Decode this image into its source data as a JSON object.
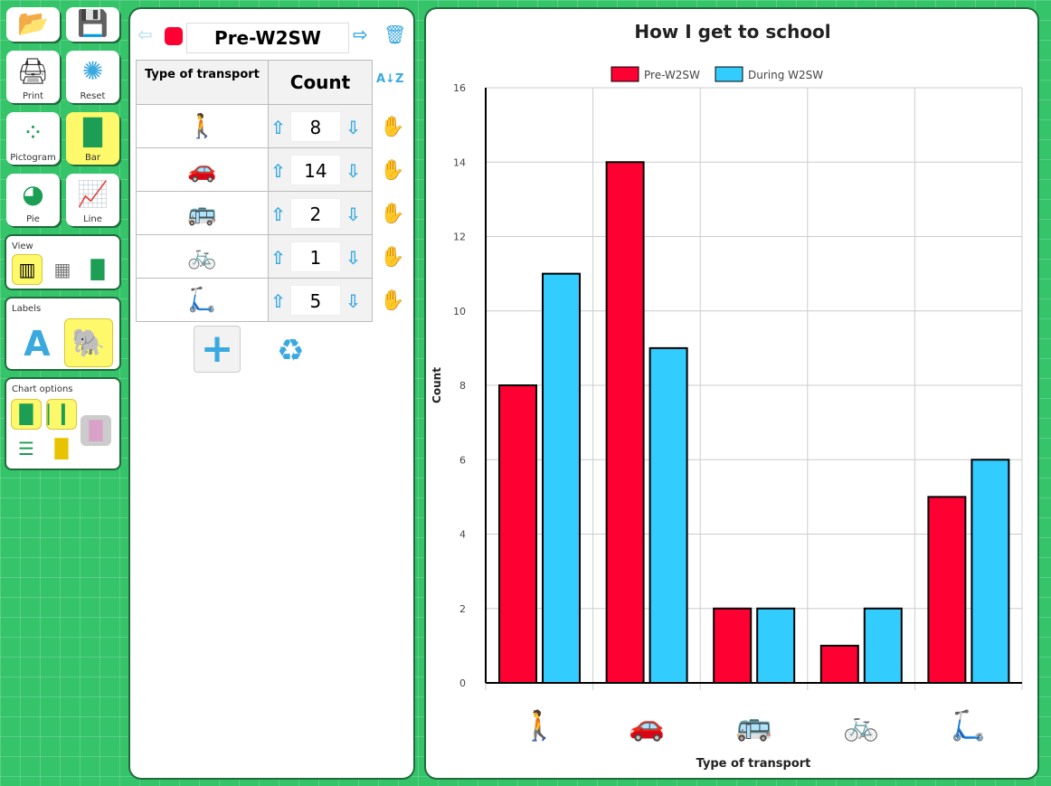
{
  "toolbar": {
    "open_label": "",
    "save_label": "",
    "print_label": "Print",
    "reset_label": "Reset",
    "pictogram_label": "Pictogram",
    "bar_label": "Bar",
    "pie_label": "Pie",
    "line_label": "Line"
  },
  "view": {
    "title": "View",
    "selected": "table-and-chart"
  },
  "labels": {
    "title": "Labels",
    "selected": "picture"
  },
  "chart_options": {
    "title": "Chart options",
    "selected": [
      "grouped-bar",
      "thin-bar"
    ]
  },
  "dataset": {
    "name": "Pre-W2SW",
    "color": "#ff0033"
  },
  "table": {
    "col1": "Type of transport",
    "col2": "Count",
    "rows": [
      {
        "icon": "walking",
        "value": "8"
      },
      {
        "icon": "car",
        "value": "14"
      },
      {
        "icon": "bus",
        "value": "2"
      },
      {
        "icon": "bicycle",
        "value": "1"
      },
      {
        "icon": "scooter",
        "value": "5"
      }
    ]
  },
  "chart_data": {
    "type": "bar",
    "title": "How I get to school",
    "xlabel": "Type of transport",
    "ylabel": "Count",
    "categories": [
      "walking",
      "car",
      "bus",
      "bicycle",
      "scooter"
    ],
    "series": [
      {
        "name": "Pre-W2SW",
        "color": "#ff0033",
        "values": [
          8,
          14,
          2,
          1,
          5
        ]
      },
      {
        "name": "During W2SW",
        "color": "#33ccff",
        "values": [
          11,
          9,
          2,
          2,
          6
        ]
      }
    ],
    "ylim": [
      0,
      16
    ],
    "yticks": [
      "0",
      "2",
      "4",
      "6",
      "8",
      "10",
      "12",
      "14",
      "16"
    ],
    "grid": true,
    "legend": "top"
  }
}
